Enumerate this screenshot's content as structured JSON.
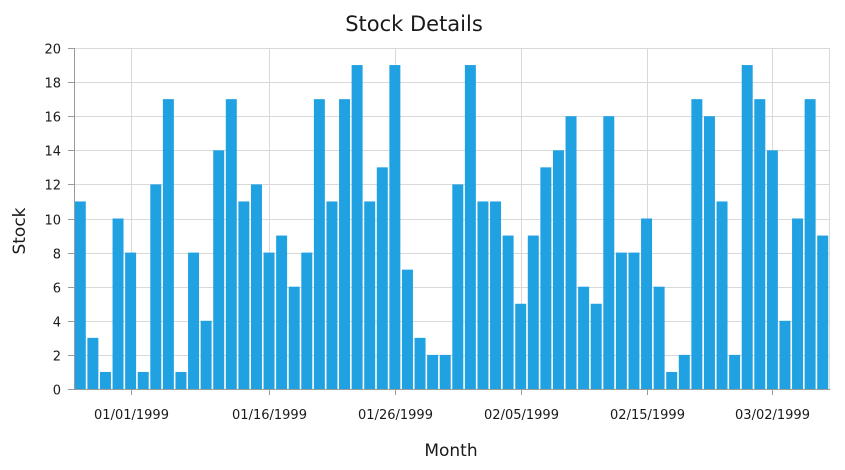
{
  "chart_data": {
    "type": "bar",
    "title": "Stock Details",
    "xlabel": "Month",
    "ylabel": "Stock",
    "ylim": [
      0,
      20
    ],
    "y_ticks": [
      0,
      2,
      4,
      6,
      8,
      10,
      12,
      14,
      16,
      18,
      20
    ],
    "grid": true,
    "bar_color": "#1FA1E2",
    "x_tick_labels": [
      {
        "label": "01/01/1999",
        "index": 4.5
      },
      {
        "label": "01/16/1999",
        "index": 15.5
      },
      {
        "label": "01/26/1999",
        "index": 25.5
      },
      {
        "label": "02/05/1999",
        "index": 35.5
      },
      {
        "label": "02/15/1999",
        "index": 45.5
      },
      {
        "label": "03/02/1999",
        "index": 55.5
      }
    ],
    "values": [
      11,
      3,
      1,
      10,
      8,
      1,
      12,
      17,
      1,
      8,
      4,
      14,
      17,
      11,
      12,
      8,
      9,
      6,
      8,
      17,
      11,
      17,
      19,
      11,
      13,
      19,
      7,
      3,
      2,
      2,
      12,
      19,
      11,
      11,
      9,
      5,
      9,
      13,
      14,
      16,
      6,
      5,
      16,
      8,
      8,
      10,
      6,
      1,
      2,
      17,
      16,
      11,
      2,
      19,
      17,
      14,
      4,
      10,
      17,
      9
    ]
  }
}
